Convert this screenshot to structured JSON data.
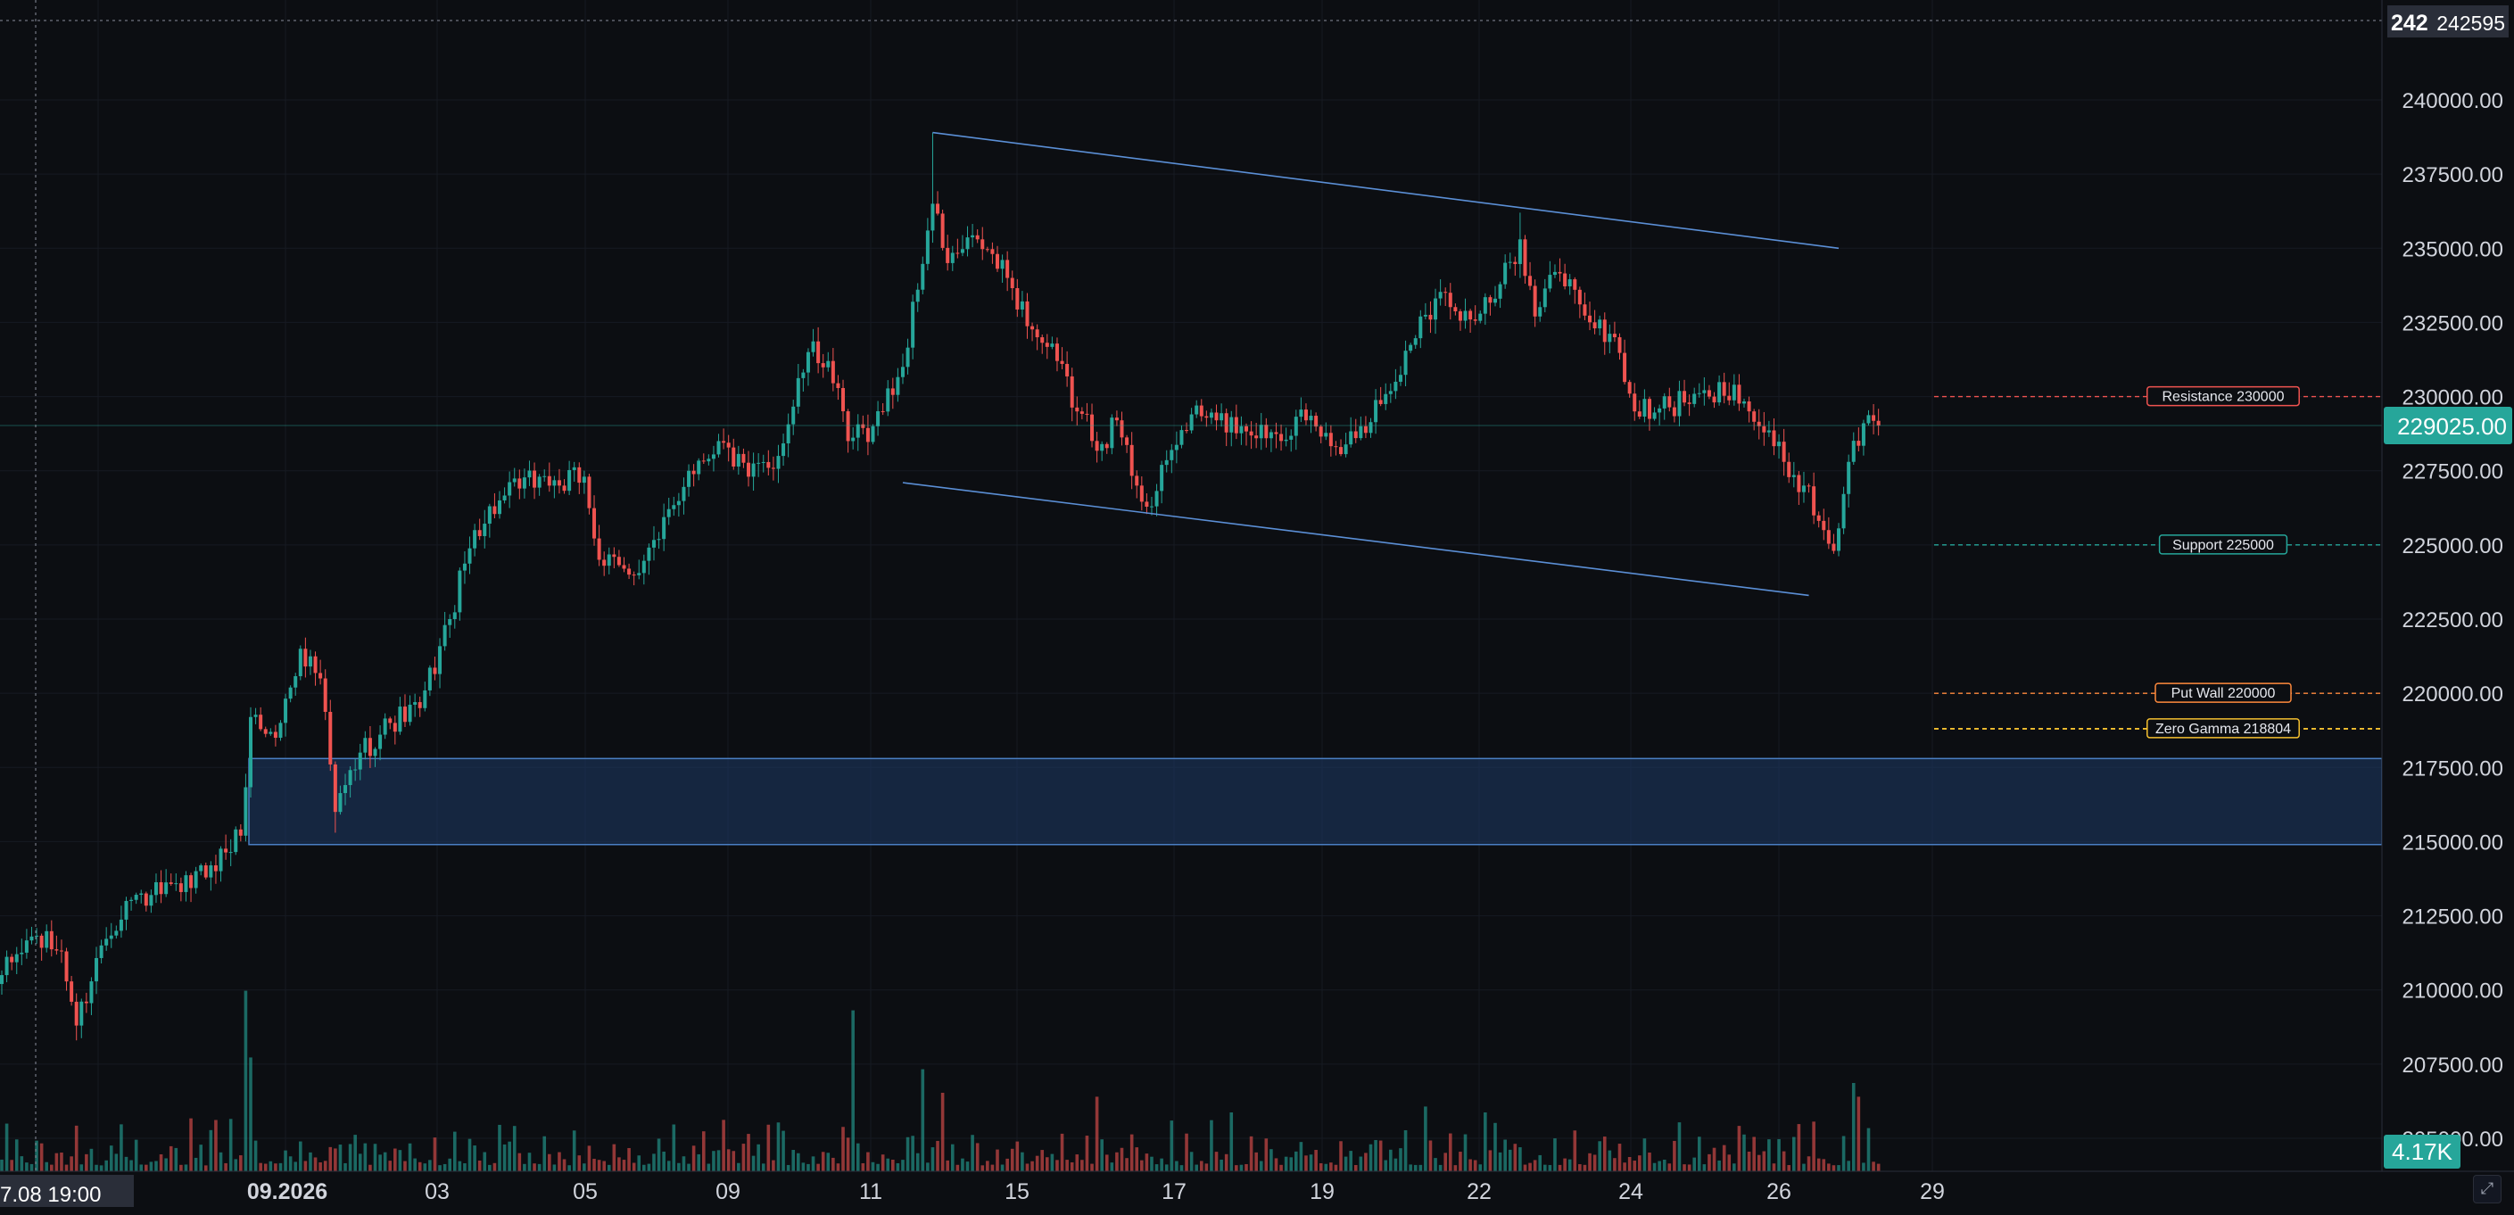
{
  "colors": {
    "background": "#0c0e12",
    "up": "#26a69a",
    "down": "#ef5350",
    "grid": "#161a22",
    "axis_text": "#d1d4dc",
    "channel": "#5b8fd6",
    "zone_fill": "#1e3a66",
    "zone_border": "#4a7fc4",
    "resistance": "#ef5350",
    "support": "#26a69a",
    "put_wall": "#ff8a3d",
    "zero_gamma": "#f5c030",
    "last_price_bg": "#26a69a",
    "crosshair": "#8a8f9c"
  },
  "chart_data": {
    "type": "candlestick",
    "y_range": [
      204000,
      243600
    ],
    "y_ticks": [
      "240000.00",
      "237500.00",
      "235000.00",
      "232500.00",
      "230000.00",
      "227500.00",
      "225000.00",
      "222500.00",
      "220000.00",
      "217500.00",
      "215000.00",
      "212500.00",
      "210000.00",
      "207500.00",
      "205000.00"
    ],
    "x_labels": [
      "09.2026",
      "03",
      "05",
      "09",
      "11",
      "15",
      "17",
      "19",
      "22",
      "24",
      "26",
      "29"
    ],
    "crosshair_date": "7.08 19:00",
    "crosshair_price_clip": "242",
    "crosshair_price_tag": "242595",
    "last_price": "229025.00",
    "last_volume": "4.17K",
    "price_levels": [
      {
        "label": "Resistance 230000",
        "price": 230000,
        "style": "resistance"
      },
      {
        "label": "Support 225000",
        "price": 225000,
        "style": "support"
      },
      {
        "label": "Put Wall 220000",
        "price": 220000,
        "style": "put_wall"
      },
      {
        "label": "Zero Gamma 218804",
        "price": 218804,
        "style": "zero_gamma"
      }
    ],
    "zone": {
      "from": 214900,
      "to": 217800
    },
    "channel": [
      {
        "from": {
          "bar": 187,
          "price": 238900
        },
        "to": {
          "bar": 369,
          "price": 235000
        }
      },
      {
        "from": {
          "bar": 181,
          "price": 227100
        },
        "to": {
          "bar": 363,
          "price": 223300
        }
      }
    ],
    "anchors": [
      [
        0,
        210500
      ],
      [
        6,
        211800
      ],
      [
        12,
        211300
      ],
      [
        15,
        208800
      ],
      [
        20,
        211500
      ],
      [
        25,
        213000
      ],
      [
        30,
        213200
      ],
      [
        36,
        213300
      ],
      [
        42,
        214200
      ],
      [
        48,
        215200
      ],
      [
        50,
        219200
      ],
      [
        55,
        218500
      ],
      [
        60,
        221500
      ],
      [
        64,
        220500
      ],
      [
        67,
        216000
      ],
      [
        72,
        218000
      ],
      [
        78,
        219000
      ],
      [
        84,
        219500
      ],
      [
        90,
        222500
      ],
      [
        95,
        225500
      ],
      [
        100,
        226500
      ],
      [
        108,
        227300
      ],
      [
        112,
        227000
      ],
      [
        117,
        227300
      ],
      [
        120,
        224500
      ],
      [
        126,
        224000
      ],
      [
        132,
        225200
      ],
      [
        138,
        227500
      ],
      [
        144,
        228500
      ],
      [
        150,
        227300
      ],
      [
        156,
        228000
      ],
      [
        162,
        231500
      ],
      [
        166,
        231200
      ],
      [
        170,
        228500
      ],
      [
        175,
        229000
      ],
      [
        181,
        231000
      ],
      [
        187,
        236500
      ],
      [
        190,
        234500
      ],
      [
        196,
        235300
      ],
      [
        202,
        234000
      ],
      [
        208,
        232000
      ],
      [
        212,
        231200
      ],
      [
        216,
        229500
      ],
      [
        221,
        228400
      ],
      [
        224,
        229200
      ],
      [
        228,
        227000
      ],
      [
        231,
        226300
      ],
      [
        235,
        228200
      ],
      [
        239,
        229400
      ],
      [
        244,
        229200
      ],
      [
        249,
        229000
      ],
      [
        255,
        228800
      ],
      [
        262,
        229200
      ],
      [
        268,
        228300
      ],
      [
        273,
        229000
      ],
      [
        280,
        230500
      ],
      [
        285,
        232700
      ],
      [
        290,
        233500
      ],
      [
        295,
        232600
      ],
      [
        300,
        233300
      ],
      [
        305,
        235300
      ],
      [
        308,
        232700
      ],
      [
        312,
        234200
      ],
      [
        316,
        233600
      ],
      [
        320,
        232300
      ],
      [
        324,
        232000
      ],
      [
        328,
        229500
      ],
      [
        333,
        229600
      ],
      [
        338,
        229800
      ],
      [
        343,
        230000
      ],
      [
        348,
        230400
      ],
      [
        353,
        229000
      ],
      [
        358,
        227800
      ],
      [
        362,
        227000
      ],
      [
        366,
        225500
      ],
      [
        368,
        224800
      ],
      [
        371,
        227800
      ],
      [
        374,
        229100
      ],
      [
        377,
        229025
      ]
    ],
    "volume": {
      "spikes": [
        [
          49,
          0.92
        ],
        [
          50,
          0.58
        ],
        [
          171,
          0.82
        ],
        [
          185,
          0.52
        ],
        [
          189,
          0.4
        ],
        [
          220,
          0.38
        ],
        [
          247,
          0.3
        ],
        [
          286,
          0.33
        ],
        [
          298,
          0.3
        ],
        [
          372,
          0.45
        ],
        [
          373,
          0.38
        ],
        [
          375,
          0.22
        ]
      ]
    }
  }
}
